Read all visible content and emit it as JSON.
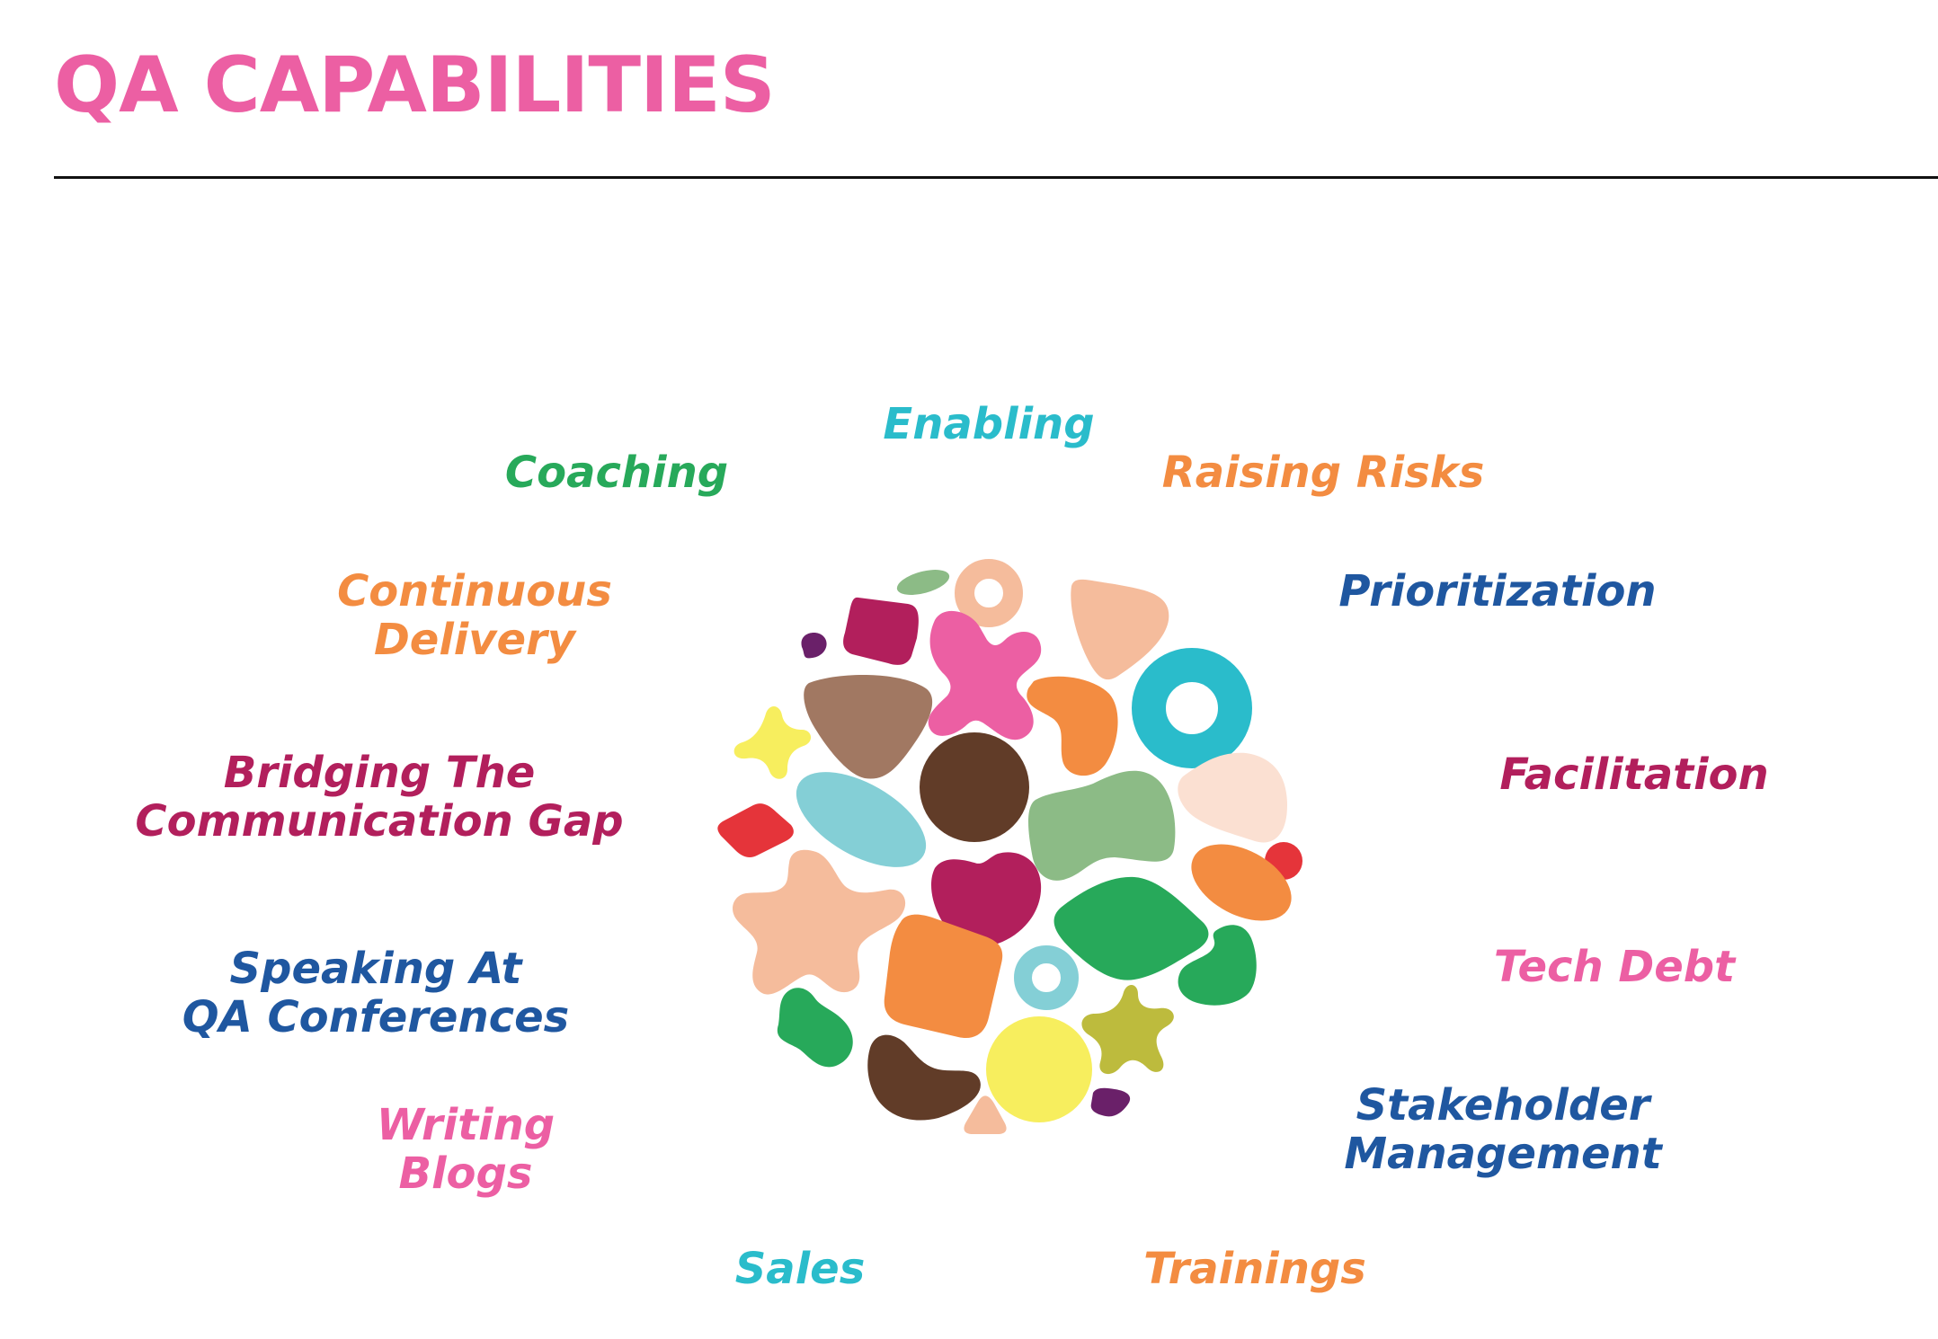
{
  "title": "QA CAPABILITIES",
  "colors": {
    "title": "#ec5fa3",
    "teal": "#2abccb",
    "green": "#27a95a",
    "orange": "#f38c41",
    "navy": "#1f57a0",
    "crimson": "#b21f5c",
    "pink": "#ec5fa3"
  },
  "capabilities": [
    {
      "lines": [
        "Enabling"
      ],
      "color": "teal"
    },
    {
      "lines": [
        "Coaching"
      ],
      "color": "green"
    },
    {
      "lines": [
        "Raising Risks"
      ],
      "color": "orange"
    },
    {
      "lines": [
        "Continuous",
        "Delivery"
      ],
      "color": "orange"
    },
    {
      "lines": [
        "Prioritization"
      ],
      "color": "navy"
    },
    {
      "lines": [
        "Bridging The",
        "Communication Gap"
      ],
      "color": "crimson"
    },
    {
      "lines": [
        "Facilitation"
      ],
      "color": "crimson"
    },
    {
      "lines": [
        "Speaking At",
        "QA Conferences"
      ],
      "color": "navy"
    },
    {
      "lines": [
        "Tech Debt"
      ],
      "color": "pink"
    },
    {
      "lines": [
        "Writing",
        "Blogs"
      ],
      "color": "pink"
    },
    {
      "lines": [
        "Stakeholder",
        "Management"
      ],
      "color": "navy"
    },
    {
      "lines": [
        "Sales"
      ],
      "color": "teal"
    },
    {
      "lines": [
        "Trainings"
      ],
      "color": "orange"
    }
  ]
}
